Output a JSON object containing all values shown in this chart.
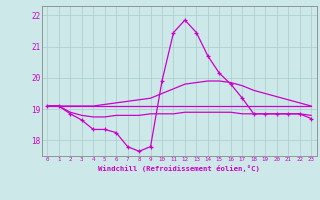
{
  "xlabel": "Windchill (Refroidissement éolien,°C)",
  "background_color": "#cce8e8",
  "grid_color": "#aacccc",
  "line_color": "#cc00cc",
  "x": [
    0,
    1,
    2,
    3,
    4,
    5,
    6,
    7,
    8,
    9,
    10,
    11,
    12,
    13,
    14,
    15,
    16,
    17,
    18,
    19,
    20,
    21,
    22,
    23
  ],
  "line1": [
    19.1,
    19.1,
    18.85,
    18.65,
    18.35,
    18.35,
    18.25,
    17.8,
    17.65,
    17.8,
    19.9,
    21.45,
    21.85,
    21.45,
    20.7,
    20.15,
    19.8,
    19.35,
    18.85,
    18.85,
    18.85,
    18.85,
    18.85,
    18.7
  ],
  "line2": [
    19.1,
    19.1,
    19.1,
    19.1,
    19.1,
    19.15,
    19.2,
    19.25,
    19.3,
    19.35,
    19.5,
    19.65,
    19.8,
    19.85,
    19.9,
    19.9,
    19.85,
    19.75,
    19.6,
    19.5,
    19.4,
    19.3,
    19.2,
    19.1
  ],
  "line3": [
    19.1,
    19.1,
    18.9,
    18.8,
    18.75,
    18.75,
    18.8,
    18.8,
    18.8,
    18.85,
    18.85,
    18.85,
    18.9,
    18.9,
    18.9,
    18.9,
    18.9,
    18.85,
    18.85,
    18.85,
    18.85,
    18.85,
    18.85,
    18.8
  ],
  "line4": [
    19.1,
    19.1,
    19.1,
    19.1,
    19.1,
    19.1,
    19.1,
    19.1,
    19.1,
    19.1,
    19.1,
    19.1,
    19.1,
    19.1,
    19.1,
    19.1,
    19.1,
    19.1,
    19.1,
    19.1,
    19.1,
    19.1,
    19.1,
    19.1
  ],
  "ylim": [
    17.5,
    22.3
  ],
  "xlim": [
    -0.5,
    23.5
  ],
  "yticks": [
    18,
    19,
    20,
    21,
    22
  ],
  "xticks": [
    0,
    1,
    2,
    3,
    4,
    5,
    6,
    7,
    8,
    9,
    10,
    11,
    12,
    13,
    14,
    15,
    16,
    17,
    18,
    19,
    20,
    21,
    22,
    23
  ]
}
